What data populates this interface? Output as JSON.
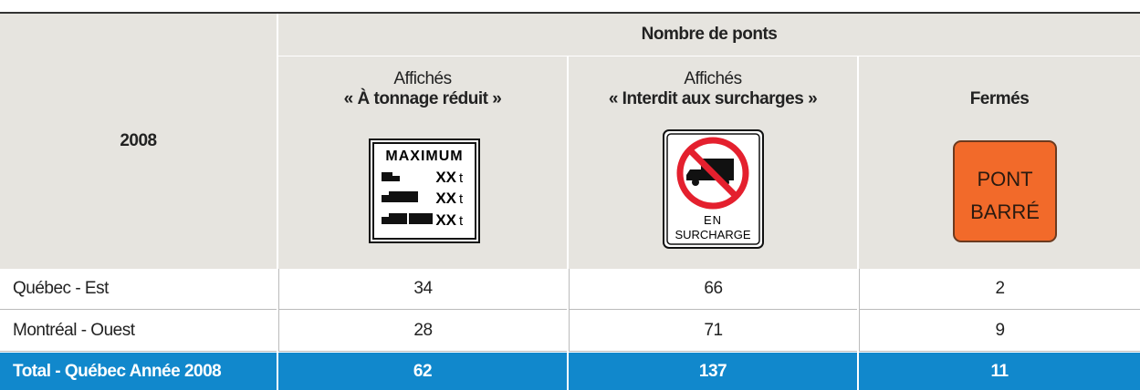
{
  "header": {
    "corner": "2008",
    "group": "Nombre de ponts",
    "columns": [
      {
        "label": "Affichés",
        "title": "« À tonnage réduit »"
      },
      {
        "label": "Affichés",
        "title": "« Interdit aux surcharges »"
      },
      {
        "title": "Fermés"
      }
    ]
  },
  "signs": {
    "tonnage": {
      "title": "MAXIMUM",
      "rows": [
        {
          "value": "XX",
          "unit": "t"
        },
        {
          "value": "XX",
          "unit": "t"
        },
        {
          "value": "XX",
          "unit": "t"
        }
      ]
    },
    "surcharge": {
      "lines": [
        "EN",
        "SURCHARGE"
      ]
    },
    "ferme": {
      "lines": [
        "PONT",
        "BARRÉ"
      ]
    }
  },
  "table": {
    "rows": [
      [
        "Québec - Est",
        34,
        66,
        2
      ],
      [
        "Montréal - Ouest",
        28,
        71,
        9
      ]
    ],
    "total": [
      "Total - Québec Année 2008",
      62,
      137,
      11
    ]
  }
}
